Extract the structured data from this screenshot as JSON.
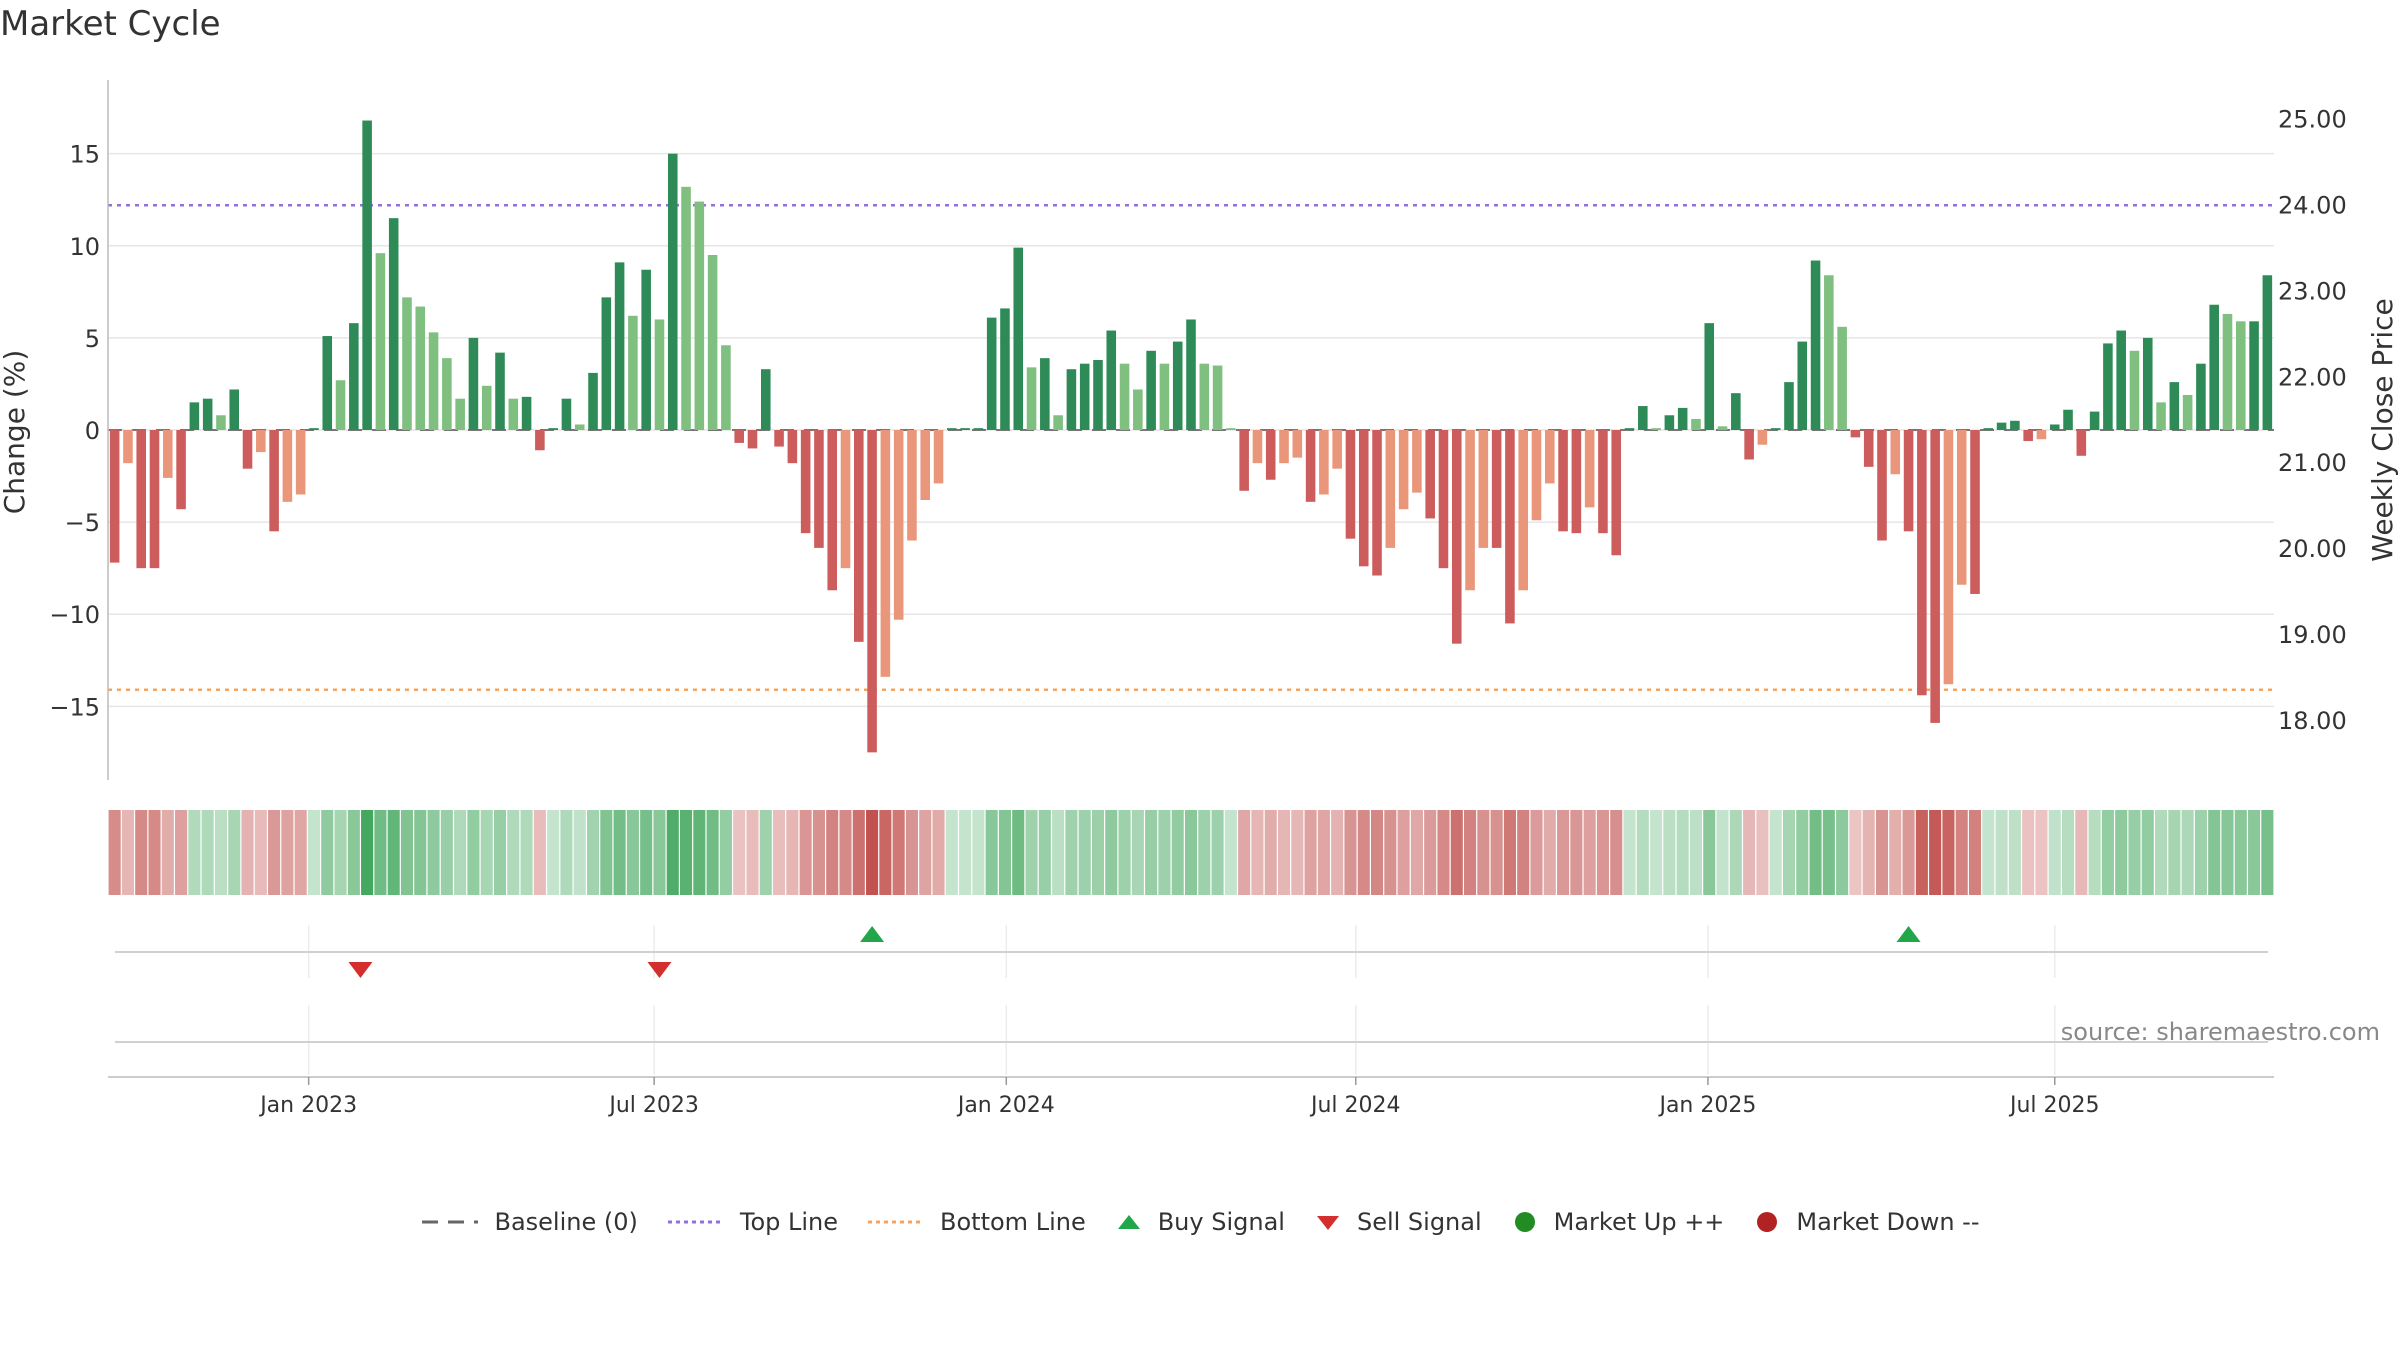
{
  "title": "Market Cycle",
  "source": "source: sharemaestro.com",
  "colors": {
    "up_dark": "#2e8b57",
    "up_light": "#7fbf7f",
    "down_dark": "#cd5c5c",
    "down_light": "#e9967a",
    "top_line": "#9370db",
    "bottom_line": "#f4a460",
    "buy": "#22a64a",
    "sell": "#d32f2f",
    "market_up": "#228b22",
    "market_down": "#b22222"
  },
  "legend": [
    {
      "key": "baseline",
      "label": "Baseline (0)",
      "symbol": "dash",
      "color": "#666666"
    },
    {
      "key": "top",
      "label": "Top Line",
      "symbol": "dot-line",
      "color": "#9370db"
    },
    {
      "key": "bottom",
      "label": "Bottom Line",
      "symbol": "dot-line",
      "color": "#f4a460"
    },
    {
      "key": "buy",
      "label": "Buy Signal",
      "symbol": "triangle-up",
      "color": "#22a64a"
    },
    {
      "key": "sell",
      "label": "Sell Signal",
      "symbol": "triangle-down",
      "color": "#d32f2f"
    },
    {
      "key": "mup",
      "label": "Market Up ++",
      "symbol": "circle",
      "color": "#228b22"
    },
    {
      "key": "mdown",
      "label": "Market Down --",
      "symbol": "circle",
      "color": "#b22222"
    }
  ],
  "chart_data": {
    "type": "bar",
    "title": "Market Cycle",
    "ylabel": "Change (%)",
    "ylabel_right": "Weekly Close Price",
    "ylim": [
      -19,
      19
    ],
    "yticks": [
      15,
      10,
      5,
      0,
      -5,
      -10,
      -15
    ],
    "ytick_labels": [
      "15",
      "10",
      "5",
      "0",
      "−5",
      "−10",
      "−15"
    ],
    "right_ylim": [
      17.3,
      25.45
    ],
    "right_yticks": [
      "25.00",
      "24.00",
      "23.00",
      "22.00",
      "21.00",
      "20.00",
      "19.00",
      "18.00"
    ],
    "top_line": 12.2,
    "bottom_line": -14.1,
    "x_tick_labels": [
      "Jan 2023",
      "Jul 2023",
      "Jan 2024",
      "Jul 2024",
      "Jan 2025",
      "Jul 2025"
    ],
    "x_tick_weeks": [
      14.6,
      40.6,
      67.1,
      93.4,
      119.9,
      146.0
    ],
    "values": [
      -7.2,
      -1.8,
      -7.5,
      -7.5,
      -2.6,
      -4.3,
      1.5,
      1.7,
      0.8,
      2.2,
      -2.1,
      -1.2,
      -5.5,
      -3.9,
      -3.5,
      0.1,
      5.1,
      2.7,
      5.8,
      16.8,
      9.6,
      11.5,
      7.2,
      6.7,
      5.3,
      3.9,
      1.7,
      5.0,
      2.4,
      4.2,
      1.7,
      1.8,
      -1.1,
      0.1,
      1.7,
      0.3,
      3.1,
      7.2,
      9.1,
      6.2,
      8.7,
      6.0,
      15.0,
      13.2,
      12.4,
      9.5,
      4.6,
      -0.7,
      -1.0,
      3.3,
      -0.9,
      -1.8,
      -5.6,
      -6.4,
      -8.7,
      -7.5,
      -11.5,
      -17.5,
      -13.4,
      -10.3,
      -6.0,
      -3.8,
      -2.9,
      0.1,
      0.1,
      0.1,
      6.1,
      6.6,
      9.9,
      3.4,
      3.9,
      0.8,
      3.3,
      3.6,
      3.8,
      5.4,
      3.6,
      2.2,
      4.3,
      3.6,
      4.8,
      6.0,
      3.6,
      3.5,
      0.1,
      -3.3,
      -1.8,
      -2.7,
      -1.8,
      -1.5,
      -3.9,
      -3.5,
      -2.1,
      -5.9,
      -7.4,
      -7.9,
      -6.4,
      -4.3,
      -3.4,
      -4.8,
      -7.5,
      -11.6,
      -8.7,
      -6.4,
      -6.4,
      -10.5,
      -8.7,
      -4.9,
      -2.9,
      -5.5,
      -5.6,
      -4.2,
      -5.6,
      -6.8,
      0.1,
      1.3,
      0.1,
      0.8,
      1.2,
      0.6,
      5.8,
      0.2,
      2.0,
      -1.6,
      -0.8,
      0.1,
      2.6,
      4.8,
      9.2,
      8.4,
      5.6,
      -0.4,
      -2.0,
      -6.0,
      -2.4,
      -5.5,
      -14.4,
      -15.9,
      -13.8,
      -8.4,
      -8.9,
      0.1,
      0.4,
      0.5,
      -0.6,
      -0.5,
      0.3,
      1.1,
      -1.4,
      1.0,
      4.7,
      5.4,
      4.3,
      5.0,
      1.5,
      2.6,
      1.9,
      3.6,
      6.8,
      6.3,
      5.9,
      5.9,
      8.4
    ],
    "buy_signals": [
      57,
      135
    ],
    "sell_signals": [
      18.5,
      41
    ],
    "market_up": [],
    "market_down": []
  }
}
